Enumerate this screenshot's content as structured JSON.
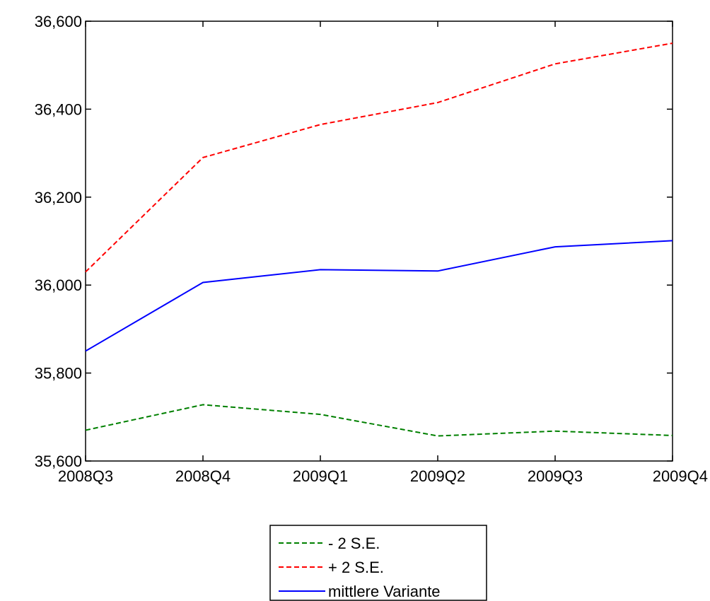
{
  "chart_data": {
    "type": "line",
    "title": "",
    "xlabel": "",
    "ylabel": "",
    "categories": [
      "2008Q3",
      "2008Q4",
      "2009Q1",
      "2009Q2",
      "2009Q3",
      "2009Q4"
    ],
    "ylim": [
      35600,
      36600
    ],
    "yticks": [
      35600,
      35800,
      36000,
      36200,
      36400,
      36600
    ],
    "ytick_labels": [
      "35,600",
      "35,800",
      "36,000",
      "36,200",
      "36,400",
      "36,600"
    ],
    "grid": false,
    "legend_position": "bottom-center",
    "series": [
      {
        "name": "- 2 S.E.",
        "values": [
          35670,
          35728,
          35706,
          35657,
          35668,
          35658
        ],
        "color": "#008000",
        "style": "dashed"
      },
      {
        "name": "+ 2 S.E.",
        "values": [
          36030,
          36290,
          36365,
          36415,
          36503,
          36550
        ],
        "color": "#ff0000",
        "style": "dashed"
      },
      {
        "name": "mittlere Variante",
        "values": [
          35850,
          36006,
          36035,
          36032,
          36087,
          36101
        ],
        "color": "#0000ff",
        "style": "solid"
      }
    ]
  }
}
